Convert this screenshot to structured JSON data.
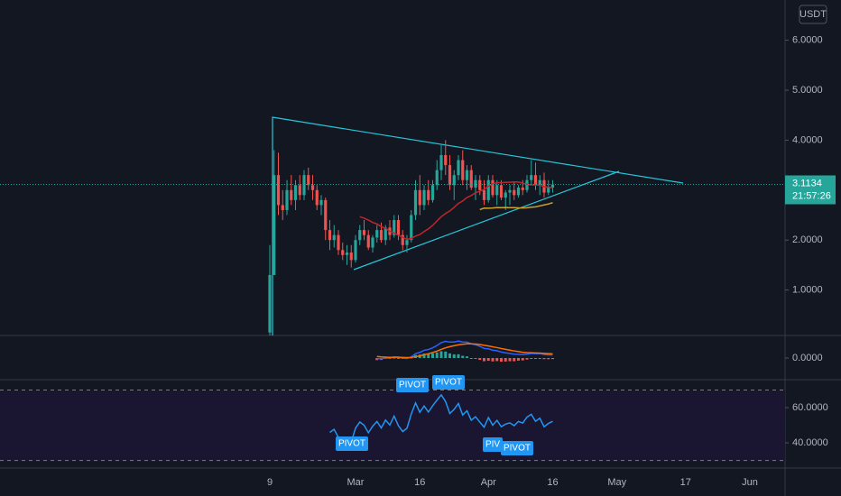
{
  "chart_data": {
    "type": "candlestick",
    "currency": "USDT",
    "categories": [
      "9",
      null,
      null,
      null,
      null,
      null,
      null,
      null,
      null,
      null,
      null,
      null,
      null,
      null,
      null,
      null,
      null,
      null,
      null,
      null,
      "Mar",
      null,
      null,
      null,
      null,
      null,
      null,
      null,
      null,
      null,
      null,
      null,
      null,
      null,
      null,
      "16",
      null,
      null,
      null,
      null,
      null,
      null,
      null,
      null,
      null,
      null,
      null,
      null,
      null,
      null,
      null,
      "Apr",
      null,
      null,
      null,
      null,
      null,
      null,
      null,
      null,
      null,
      null,
      null,
      null,
      null,
      null,
      "16"
    ],
    "future_categories": [
      "May",
      "17",
      "Jun"
    ],
    "candles": [
      [
        0.15,
        1.9,
        0.09,
        1.3
      ],
      [
        1.3,
        3.8,
        1.3,
        3.3
      ],
      [
        3.3,
        3.75,
        2.5,
        2.7
      ],
      [
        2.7,
        3.0,
        2.4,
        2.6
      ],
      [
        2.6,
        3.2,
        2.5,
        3.0
      ],
      [
        3.0,
        3.3,
        2.7,
        2.8
      ],
      [
        2.8,
        3.2,
        2.6,
        3.1
      ],
      [
        3.1,
        3.3,
        2.8,
        2.9
      ],
      [
        2.9,
        3.4,
        2.8,
        3.3
      ],
      [
        3.3,
        3.45,
        3.0,
        3.1
      ],
      [
        3.1,
        3.3,
        2.8,
        3.0
      ],
      [
        3.0,
        3.1,
        2.6,
        2.7
      ],
      [
        2.7,
        2.9,
        2.5,
        2.8
      ],
      [
        2.8,
        2.85,
        2.0,
        2.2
      ],
      [
        2.2,
        2.4,
        1.8,
        2.0
      ],
      [
        2.0,
        2.3,
        1.85,
        2.1
      ],
      [
        2.1,
        2.2,
        1.7,
        1.8
      ],
      [
        1.8,
        1.95,
        1.6,
        1.7
      ],
      [
        1.7,
        1.9,
        1.5,
        1.75
      ],
      [
        1.75,
        1.9,
        1.45,
        1.6
      ],
      [
        1.6,
        2.1,
        1.55,
        2.0
      ],
      [
        2.0,
        2.3,
        1.9,
        2.2
      ],
      [
        2.2,
        2.4,
        2.0,
        2.1
      ],
      [
        2.1,
        2.2,
        1.8,
        1.85
      ],
      [
        1.85,
        2.1,
        1.75,
        2.05
      ],
      [
        2.05,
        2.3,
        1.95,
        2.2
      ],
      [
        2.2,
        2.35,
        1.95,
        2.0
      ],
      [
        2.0,
        2.3,
        1.9,
        2.25
      ],
      [
        2.25,
        2.4,
        2.0,
        2.1
      ],
      [
        2.1,
        2.5,
        2.05,
        2.4
      ],
      [
        2.4,
        2.5,
        2.0,
        2.1
      ],
      [
        2.1,
        2.2,
        1.8,
        1.9
      ],
      [
        1.9,
        2.1,
        1.75,
        2.0
      ],
      [
        2.0,
        2.6,
        1.95,
        2.5
      ],
      [
        2.5,
        3.2,
        2.4,
        3.0
      ],
      [
        3.0,
        3.3,
        2.5,
        2.7
      ],
      [
        2.7,
        3.1,
        2.6,
        3.0
      ],
      [
        3.0,
        3.2,
        2.7,
        2.8
      ],
      [
        2.8,
        3.2,
        2.75,
        3.1
      ],
      [
        3.1,
        3.6,
        3.0,
        3.4
      ],
      [
        3.4,
        3.9,
        3.2,
        3.7
      ],
      [
        3.7,
        4.0,
        3.3,
        3.5
      ],
      [
        3.5,
        3.7,
        3.0,
        3.1
      ],
      [
        3.1,
        3.4,
        2.8,
        3.3
      ],
      [
        3.3,
        3.7,
        3.2,
        3.6
      ],
      [
        3.6,
        3.8,
        3.1,
        3.2
      ],
      [
        3.2,
        3.5,
        3.0,
        3.4
      ],
      [
        3.4,
        3.5,
        3.0,
        3.05
      ],
      [
        3.05,
        3.3,
        2.8,
        3.2
      ],
      [
        3.2,
        3.3,
        2.9,
        3.0
      ],
      [
        3.0,
        3.2,
        2.7,
        2.8
      ],
      [
        2.8,
        3.3,
        2.75,
        3.2
      ],
      [
        3.2,
        3.3,
        2.85,
        2.9
      ],
      [
        2.9,
        3.2,
        2.7,
        3.1
      ],
      [
        3.1,
        3.2,
        2.8,
        2.85
      ],
      [
        2.85,
        3.0,
        2.6,
        2.95
      ],
      [
        2.95,
        3.1,
        2.7,
        3.0
      ],
      [
        3.0,
        3.15,
        2.8,
        2.9
      ],
      [
        2.9,
        3.1,
        2.85,
        3.05
      ],
      [
        3.05,
        3.2,
        2.9,
        3.0
      ],
      [
        3.0,
        3.3,
        2.95,
        3.2
      ],
      [
        3.2,
        3.6,
        3.1,
        3.3
      ],
      [
        3.3,
        3.55,
        3.0,
        3.1
      ],
      [
        3.1,
        3.3,
        2.9,
        3.2
      ],
      [
        3.2,
        3.35,
        2.85,
        2.95
      ],
      [
        2.95,
        3.2,
        2.9,
        3.05
      ],
      [
        3.05,
        3.2,
        2.95,
        3.1134
      ]
    ],
    "up_color": "#26a69a",
    "down_color": "#ef5350",
    "ylim": [
      0.09,
      6.805
    ],
    "yticks": [
      {
        "value": 1,
        "label": "1.0000"
      },
      {
        "value": 2,
        "label": "2.0000"
      },
      {
        "value": 3,
        "label": "3.0000"
      },
      {
        "value": 4,
        "label": "4.0000"
      },
      {
        "value": 5,
        "label": "5.0000"
      },
      {
        "value": 6,
        "label": "6.0000"
      }
    ],
    "last_price": {
      "value": 3.1134,
      "label": "3.1134"
    },
    "countdown": "21:57:26",
    "macd": {
      "ylim": [
        -0.45,
        0.45
      ],
      "yticks": [
        {
          "value": 0,
          "label": "0.0000"
        }
      ]
    },
    "rsi": {
      "ylim": [
        26.2,
        75.4
      ],
      "yticks": [
        {
          "value": 60,
          "label": "60.0000"
        },
        {
          "value": 40,
          "label": "40.0000"
        }
      ],
      "levels": [
        70,
        30
      ],
      "labels": [
        "PIVOT",
        "PIVOT",
        "PIVOT",
        "PIV",
        "PIVOT"
      ]
    }
  }
}
